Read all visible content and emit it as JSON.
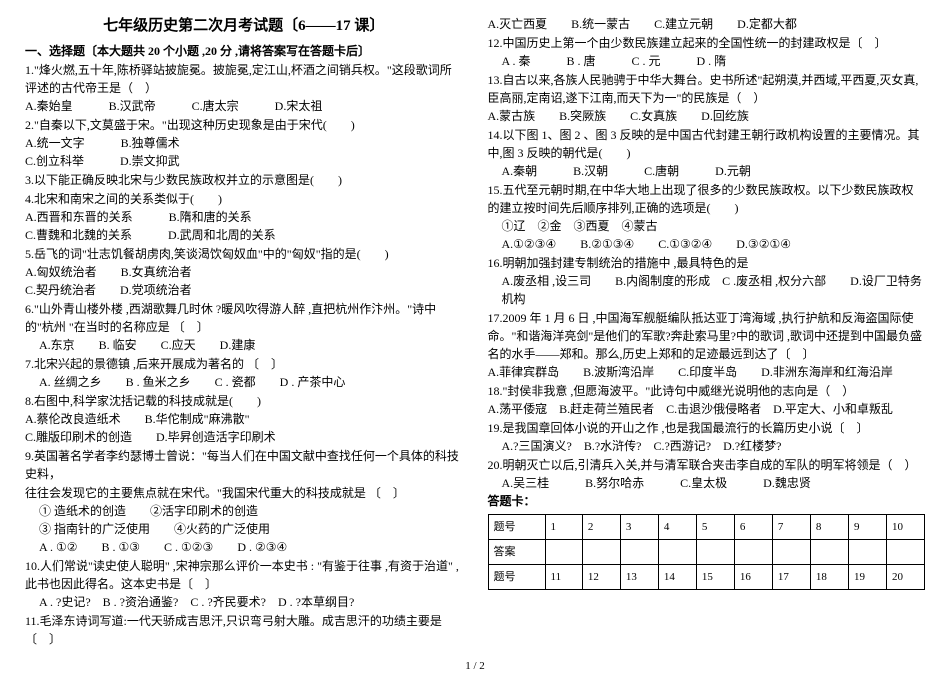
{
  "title": "七年级历史第二次月考试题〔6——17 课〕",
  "section1_header": "一、选择题〔本大题共 20 个小题 ,20 分 ,请将答案写在答题卡后〕",
  "left": {
    "q1": "1.\"烽火燃,五十年,陈桥驿站披旎冕。披旎冕,定江山,杯酒之间销兵权。\"这段歌词所评述的古代帝王是（　）",
    "q1o": "A.秦始皇　　　B.汉武帝　　　C.唐太宗　　　D.宋太祖",
    "q2": "2.\"自秦以下,文莫盛于宋。\"出现这种历史现象是由于宋代(　　)",
    "q2o": "A.统一文字　　　B.独尊儒术\nC.创立科举　　　D.崇文抑武",
    "q3": "3.以下能正确反映北宋与少数民族政权并立的示意图是(　　)",
    "q4": "4.北宋和南宋之间的关系类似于(　　)",
    "q4o": "A.西晋和东晋的关系　　　B.隋和唐的关系\nC.曹魏和北魏的关系　　　D.武周和北周的关系",
    "q5": "5.岳飞的词\"壮志饥餐胡虏肉,笑谈渴饮匈奴血\"中的\"匈奴\"指的是(　　)",
    "q5o": "A.匈奴统治者　　B.女真统治者\nC.契丹统治者　　D.党项统治者",
    "q6": "6.\"山外青山楼外楼 ,西湖歌舞几时休 ?暖风吹得游人醉 ,直把杭州作汴州。\"诗中的\"杭州 \"在当时的名称应是 〔　〕",
    "q6o": "A.东京　　B. 临安　　C.应天　　D.建康",
    "q7": "7.北宋兴起的景德镇 ,后来开展成为著名的 〔　〕",
    "q7o": "A. 丝绸之乡　　B . 鱼米之乡　　C . 瓷都　　D . 产茶中心",
    "q8": "8.右图中,科学家沈括记载的科技成就是(　　)",
    "q8o": "A.蔡伦改良造纸术　　B.华佗制成\"麻沸散\"\nC.雕版印刷术的创造　　D.毕昇创造活字印刷术",
    "q9": "9.英国著名学者李约瑟博士曾说：\"每当人们在中国文献中查找任何一个具体的科技史料，",
    "q9b": "往往会发现它的主要焦点就在宋代。\"我国宋代重大的科技成就是 〔　〕",
    "q9c": "① 造纸术的创造　　②活字印刷术的创造\n③ 指南针的广泛使用　　④火药的广泛使用",
    "q9o": "A . ①②　　B . ①③　　C . ①②③　　D . ②③④",
    "q10": "10.人们常说\"读史使人聪明\" ,宋神宗那么评价一本史书 : \"有鉴于往事 ,有资于治道\" ,此书也因此得名。这本史书是〔　〕",
    "q10o": "A . ?史记?　B . ?资治通鉴?　C . ?齐民要术?　D . ?本草纲目?",
    "q11": "11.毛泽东诗词写道:一代天骄成吉思汗,只识弯弓射大雕。成吉思汗的功绩主要是〔　〕"
  },
  "right": {
    "q11o": "A.灭亡西夏　　B.统一蒙古　　C.建立元朝　　D.定都大都",
    "q12": "12.中国历史上第一个由少数民族建立起来的全国性统一的封建政权是〔　〕",
    "q12o": "A . 秦　　　B . 唐　　　C . 元　　　D . 隋",
    "q13": "13.自古以来,各族人民驰骋于中华大舞台。史书所述\"起朔漠,并西域,平西夏,灭女真,臣高丽,定南诏,遂下江南,而天下为一\"的民族是（　）",
    "q13o": "A.蒙古族　　B.突厥族　　C.女真族　　D.回纥族",
    "q14": "14.以下图 1、图 2 、图 3 反映的是中国古代封建王朝行政机构设置的主要情况。其中,图 3 反映的朝代是(　　)",
    "q14o": "A.秦朝　　　B.汉朝　　　C.唐朝　　　D.元朝",
    "q15": "15.五代至元朝时期,在中华大地上出现了很多的少数民族政权。以下少数民族政权的建立按时间先后顺序排列,正确的选项是(　　)",
    "q15a": "①辽　②金　③西夏　④蒙古",
    "q15o": "A.①②③④　　B.②①③④　　C.①③②④　　D.③②①④",
    "q16": "16.明朝加强封建专制统治的措施中 ,最具特色的是",
    "q16o": "A.废丞相 ,设三司　　B.内阁制度的形成　C .废丞相 ,权分六部　　D.设厂卫特务机构",
    "q17": "17.2009 年 1 月 6 日 ,中国海军舰艇编队抵达亚丁湾海域 ,执行护航和反海盗国际使命。\"和谐海洋亮剑\"是他们的军歌?奔赴索马里?中的歌词 ,歌词中还提到中国最负盛名的水手——郑和。那么,历史上郑和的足迹最远到达了〔　〕",
    "q17o": "A.菲律宾群岛　　B.波斯湾沿岸　　C.印度半岛　　D.非洲东海岸和红海沿岸",
    "q18": "18.\"封侯非我意 ,但愿海波平。\"此诗句中威继光说明他的志向是（　）",
    "q18o": "A.荡平倭寇　B.赶走荷兰殖民者　C.击退沙俄侵略者　D.平定大、小和卓叛乱",
    "q19": "19.是我国章回体小说的开山之作 ,也是我国最流行的长篇历史小说〔　〕",
    "q19o": "A.?三国演义?　B.?水浒传?　C.?西游记?　D.?红楼梦?",
    "q20": "20.明朝灭亡以后,引清兵入关,并与清军联合夹击李自成的军队的明军将领是（　）",
    "q20o": "A.吴三桂　　　B.努尔哈赤　　　C.皇太极　　　D.魏忠贤",
    "answer_label": "答题卡："
  },
  "table": {
    "r1": [
      "题号",
      "1",
      "2",
      "3",
      "4",
      "5",
      "6",
      "7",
      "8",
      "9",
      "10"
    ],
    "r2": [
      "答案",
      "",
      "",
      "",
      "",
      "",
      "",
      "",
      "",
      "",
      ""
    ],
    "r3": [
      "题号",
      "11",
      "12",
      "13",
      "14",
      "15",
      "16",
      "17",
      "18",
      "19",
      "20"
    ]
  },
  "pagenum": "1 / 2"
}
